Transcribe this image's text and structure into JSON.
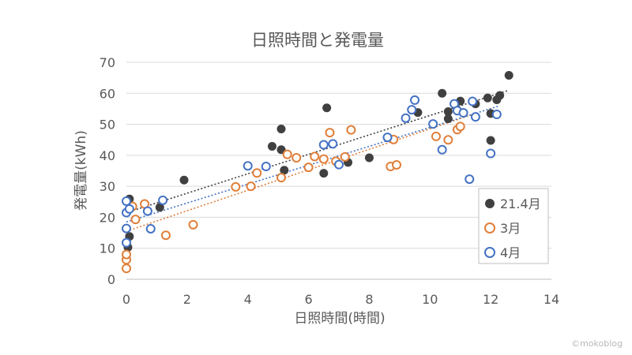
{
  "watermark": "©mokoblog",
  "chart_data": {
    "type": "scatter",
    "title": "日照時間と発電量",
    "xlabel": "日照時間(時間)",
    "ylabel": "発電量(kWh)",
    "xlim": [
      0,
      14
    ],
    "ylim": [
      0,
      70
    ],
    "xticks": [
      "0",
      "2",
      "4",
      "6",
      "8",
      "10",
      "12",
      "14"
    ],
    "yticks": [
      "0",
      "10",
      "20",
      "30",
      "40",
      "50",
      "60",
      "70"
    ],
    "grid": "horizontal",
    "legend": "right",
    "series": [
      {
        "name": "21.4月",
        "color": "#404040",
        "marker": "filled-circle",
        "trendline": [
          [
            0,
            21.5
          ],
          [
            12.6,
            61
          ]
        ],
        "points": [
          [
            0.0,
            7.7
          ],
          [
            0.05,
            10.3
          ],
          [
            0.1,
            13.8
          ],
          [
            0.1,
            25.9
          ],
          [
            1.1,
            23.2
          ],
          [
            1.9,
            32.0
          ],
          [
            4.8,
            42.9
          ],
          [
            5.1,
            48.5
          ],
          [
            5.1,
            41.8
          ],
          [
            5.2,
            35.2
          ],
          [
            6.5,
            34.2
          ],
          [
            6.6,
            55.3
          ],
          [
            7.3,
            37.7
          ],
          [
            8.0,
            39.2
          ],
          [
            9.6,
            53.8
          ],
          [
            10.4,
            60.0
          ],
          [
            10.6,
            54.1
          ],
          [
            10.6,
            51.8
          ],
          [
            11.0,
            57.5
          ],
          [
            11.5,
            56.6
          ],
          [
            11.9,
            58.5
          ],
          [
            12.0,
            53.5
          ],
          [
            12.0,
            44.8
          ],
          [
            12.2,
            57.9
          ],
          [
            12.3,
            59.3
          ],
          [
            12.6,
            65.8
          ]
        ]
      },
      {
        "name": "3月",
        "color": "#e07f3a",
        "marker": "open-circle",
        "trendline": [
          [
            0,
            15.5
          ],
          [
            11.5,
            53.5
          ]
        ],
        "points": [
          [
            0.0,
            3.5
          ],
          [
            0.0,
            6.3
          ],
          [
            0.0,
            8.0
          ],
          [
            0.2,
            23.5
          ],
          [
            0.3,
            19.3
          ],
          [
            0.6,
            24.3
          ],
          [
            1.3,
            14.2
          ],
          [
            2.2,
            17.6
          ],
          [
            3.6,
            29.8
          ],
          [
            4.1,
            30.0
          ],
          [
            4.3,
            34.3
          ],
          [
            5.1,
            32.8
          ],
          [
            5.3,
            40.3
          ],
          [
            5.6,
            39.2
          ],
          [
            6.0,
            36.1
          ],
          [
            6.2,
            39.6
          ],
          [
            6.5,
            38.8
          ],
          [
            6.7,
            47.3
          ],
          [
            6.9,
            38.1
          ],
          [
            7.2,
            39.5
          ],
          [
            7.4,
            48.2
          ],
          [
            8.7,
            36.4
          ],
          [
            8.8,
            45.1
          ],
          [
            8.9,
            36.9
          ],
          [
            10.2,
            46.1
          ],
          [
            10.6,
            45.0
          ],
          [
            10.9,
            48.3
          ],
          [
            11.0,
            49.3
          ]
        ]
      },
      {
        "name": "4月",
        "color": "#4472c4",
        "marker": "open-circle",
        "trendline": [
          [
            0,
            18.5
          ],
          [
            12.3,
            56
          ]
        ],
        "points": [
          [
            0.0,
            25.2
          ],
          [
            0.0,
            21.5
          ],
          [
            0.0,
            16.4
          ],
          [
            0.0,
            11.8
          ],
          [
            0.1,
            22.7
          ],
          [
            0.7,
            22.0
          ],
          [
            0.8,
            16.3
          ],
          [
            1.2,
            25.5
          ],
          [
            4.0,
            36.6
          ],
          [
            4.6,
            36.4
          ],
          [
            6.5,
            43.4
          ],
          [
            6.8,
            43.7
          ],
          [
            7.0,
            37.0
          ],
          [
            8.6,
            45.8
          ],
          [
            9.2,
            52.0
          ],
          [
            9.4,
            54.7
          ],
          [
            9.5,
            57.8
          ],
          [
            10.1,
            50.1
          ],
          [
            10.4,
            41.8
          ],
          [
            10.8,
            56.6
          ],
          [
            10.9,
            54.4
          ],
          [
            11.1,
            53.7
          ],
          [
            11.3,
            32.3
          ],
          [
            11.4,
            57.4
          ],
          [
            11.5,
            52.4
          ],
          [
            12.0,
            40.6
          ],
          [
            12.2,
            53.2
          ]
        ]
      }
    ]
  }
}
